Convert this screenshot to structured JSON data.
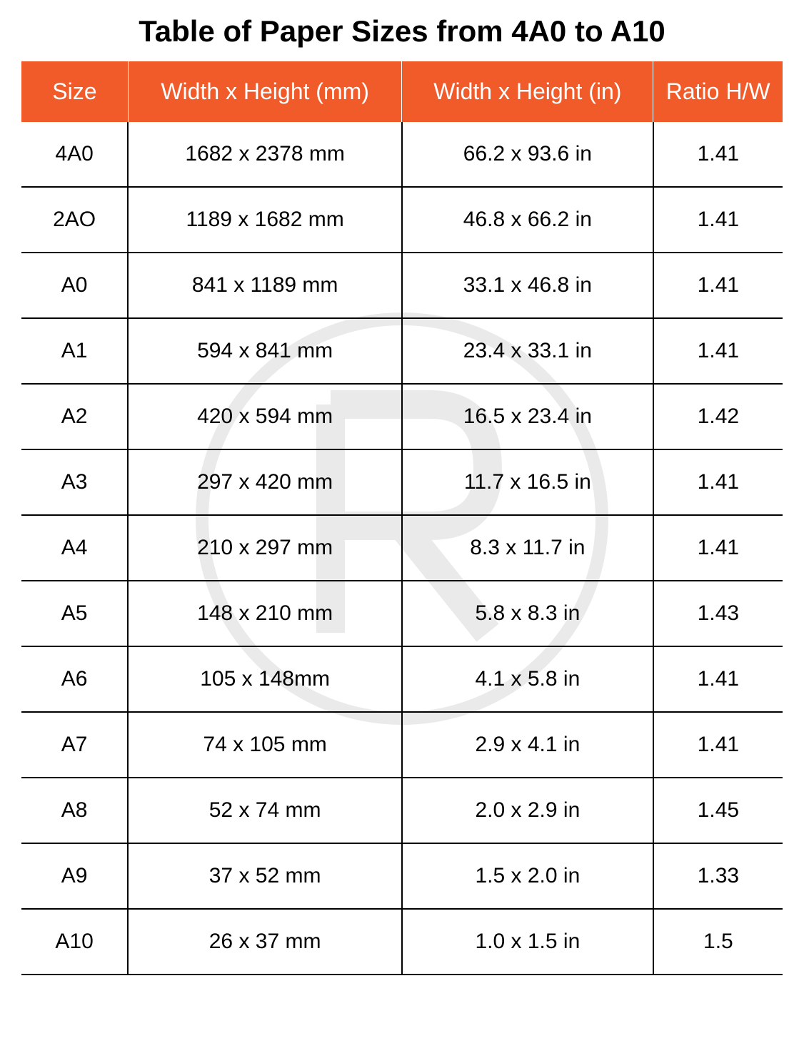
{
  "title": "Table of Paper Sizes from 4A0 to A10",
  "table": {
    "type": "table",
    "header_bg": "#f15a29",
    "header_text_color": "#ffffff",
    "body_text_color": "#000000",
    "border_color": "#000000",
    "background_color": "#ffffff",
    "title_fontsize": 42,
    "header_fontsize": 32,
    "body_fontsize": 30,
    "columns": [
      {
        "label": "Size",
        "width_pct": 14
      },
      {
        "label": "Width x Height (mm)",
        "width_pct": 36
      },
      {
        "label": "Width x Height (in)",
        "width_pct": 33
      },
      {
        "label": "Ratio H/W",
        "width_pct": 17
      }
    ],
    "rows": [
      [
        "4A0",
        "1682 x 2378 mm",
        "66.2 x 93.6 in",
        "1.41"
      ],
      [
        "2AO",
        "1189 x 1682 mm",
        "46.8 x 66.2 in",
        "1.41"
      ],
      [
        "A0",
        "841 x 1189 mm",
        "33.1 x 46.8 in",
        "1.41"
      ],
      [
        "A1",
        "594 x 841 mm",
        "23.4 x 33.1 in",
        "1.41"
      ],
      [
        "A2",
        "420 x 594 mm",
        "16.5 x 23.4 in",
        "1.42"
      ],
      [
        "A3",
        "297 x 420 mm",
        "11.7 x 16.5 in",
        "1.41"
      ],
      [
        "A4",
        "210 x 297 mm",
        "8.3 x 11.7 in",
        "1.41"
      ],
      [
        "A5",
        "148 x 210 mm",
        "5.8 x 8.3 in",
        "1.43"
      ],
      [
        "A6",
        "105 x 148mm",
        "4.1 x 5.8 in",
        "1.41"
      ],
      [
        "A7",
        "74 x 105 mm",
        "2.9 x 4.1 in",
        "1.41"
      ],
      [
        "A8",
        "52 x 74 mm",
        "2.0 x 2.9 in",
        "1.45"
      ],
      [
        "A9",
        "37 x 52 mm",
        "1.5 x 2.0 in",
        "1.33"
      ],
      [
        "A10",
        "26 x 37 mm",
        "1.0 x 1.5 in",
        "1.5"
      ]
    ]
  },
  "watermark": {
    "letter": "R",
    "shape": "circle",
    "stroke_color": "#000000",
    "opacity": 0.08,
    "stroke_width": 18
  }
}
